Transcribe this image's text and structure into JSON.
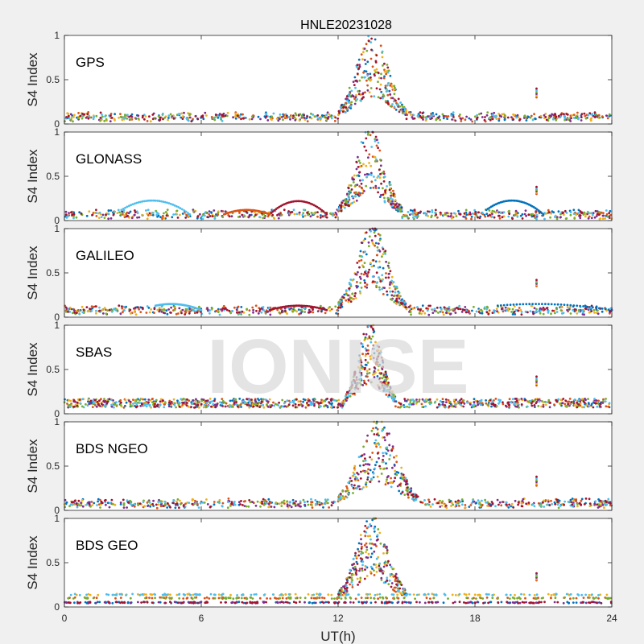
{
  "figure": {
    "title": "HNLE20231028",
    "xlabel": "UT(h)",
    "watermark": "IONISE",
    "background": "#f0f0f0",
    "axes_background": "#ffffff",
    "series_colors": [
      "#0072BD",
      "#D95319",
      "#EDB120",
      "#7E2F8E",
      "#77AC30",
      "#4DBEEE",
      "#A2142F"
    ]
  },
  "chart_data": [
    {
      "type": "scatter",
      "label": "GPS",
      "ylabel": "S4 Index",
      "xlim": [
        0,
        24
      ],
      "ylim": [
        0,
        1
      ],
      "yticks": [
        0,
        0.5,
        1
      ],
      "ytick_labels": [
        "0",
        "0.5",
        "1"
      ],
      "baseline": 0.08,
      "scintillation_window": [
        12,
        15
      ],
      "peak": 1.0,
      "outlier": {
        "x": 20.7,
        "y": [
          0.3,
          0.4
        ]
      }
    },
    {
      "type": "scatter",
      "label": "GLONASS",
      "ylabel": "S4 Index",
      "xlim": [
        0,
        24
      ],
      "ylim": [
        0,
        1
      ],
      "yticks": [
        0,
        0.5,
        1
      ],
      "ytick_labels": [
        "0",
        "0.5",
        "1"
      ],
      "baseline": 0.07,
      "scintillation_window": [
        12,
        14.8
      ],
      "peak": 1.0,
      "arcs": [
        [
          2.5,
          5.5,
          0.2
        ],
        [
          9,
          11.5,
          0.22
        ],
        [
          18.5,
          21,
          0.2
        ],
        [
          7,
          9,
          0.12
        ]
      ],
      "outlier": {
        "x": 20.7,
        "y": [
          0.3,
          0.38
        ]
      }
    },
    {
      "type": "scatter",
      "label": "GALILEO",
      "ylabel": "S4 Index",
      "xlim": [
        0,
        24
      ],
      "ylim": [
        0,
        1
      ],
      "yticks": [
        0,
        0.5,
        1
      ],
      "ytick_labels": [
        "0",
        "0.5",
        "1"
      ],
      "baseline": 0.08,
      "scintillation_window": [
        12,
        15
      ],
      "peak": 1.0,
      "arcs": [
        [
          4,
          6,
          0.12
        ],
        [
          9,
          11.5,
          0.13
        ],
        [
          19,
          24,
          0.12
        ]
      ],
      "outlier": {
        "x": 20.7,
        "y": [
          0.35,
          0.42
        ]
      }
    },
    {
      "type": "scatter",
      "label": "SBAS",
      "ylabel": "S4 Index",
      "xlim": [
        0,
        24
      ],
      "ylim": [
        0,
        1
      ],
      "yticks": [
        0,
        0.5,
        1
      ],
      "ytick_labels": [
        "0",
        "0.5",
        "1"
      ],
      "baseline": 0.12,
      "scintillation_window": [
        12.3,
        14.5
      ],
      "peak": 1.0,
      "outlier": {
        "x": 20.7,
        "y": [
          0.32,
          0.42
        ]
      }
    },
    {
      "type": "scatter",
      "label": "BDS NGEO",
      "ylabel": "S4 Index",
      "xlim": [
        0,
        24
      ],
      "ylim": [
        0,
        1
      ],
      "yticks": [
        0,
        0.5,
        1
      ],
      "ytick_labels": [
        "0",
        "0.5",
        "1"
      ],
      "baseline": 0.08,
      "scintillation_window": [
        12,
        15.5
      ],
      "peak": 1.0,
      "outlier": {
        "x": 20.7,
        "y": [
          0.28,
          0.38
        ]
      }
    },
    {
      "type": "scatter",
      "label": "BDS GEO",
      "ylabel": "S4 Index",
      "xlim": [
        0,
        24
      ],
      "ylim": [
        0,
        1
      ],
      "yticks": [
        0,
        0.5,
        1
      ],
      "ytick_labels": [
        "0",
        "0.5",
        "1"
      ],
      "xticks": [
        0,
        6,
        12,
        18,
        24
      ],
      "xtick_labels": [
        "0",
        "6",
        "12",
        "18",
        "24"
      ],
      "baseline": 0.1,
      "geo_levels": [
        0.05,
        0.1,
        0.14
      ],
      "scintillation_window": [
        12,
        15
      ],
      "peak": 1.0,
      "outlier": {
        "x": 20.7,
        "y": [
          0.3,
          0.38
        ]
      }
    }
  ]
}
